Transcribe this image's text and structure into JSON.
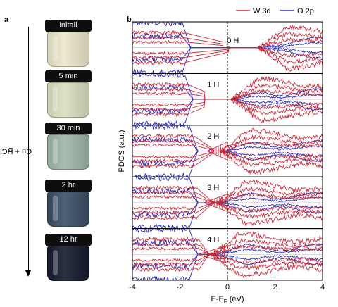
{
  "panels": {
    "a": {
      "label": "a",
      "arrow_label": "Cu + HCl + WO",
      "arrow_label_sub": "3",
      "vials": [
        {
          "time": "initail",
          "liquid_color": "#ebe7c9"
        },
        {
          "time": "5 min",
          "liquid_color": "#d9e0bf"
        },
        {
          "time": "30 min",
          "liquid_color": "#9fb6a8"
        },
        {
          "time": "2 hr",
          "liquid_color": "#3a4e66"
        },
        {
          "time": "12 hr",
          "liquid_color": "#141a2e"
        }
      ]
    },
    "b": {
      "label": "b"
    }
  },
  "chart_data": {
    "type": "line",
    "xlabel": "E-E",
    "xlabel_sub": "F",
    "xlabel_unit": " (eV)",
    "ylabel": "PDOS (a.u.)",
    "xlim": [
      -4,
      4
    ],
    "xticks": [
      -4,
      -2,
      0,
      2,
      4
    ],
    "fermi_level": 0,
    "legend": {
      "position": "top-right",
      "entries": [
        {
          "name": "W 3d",
          "color": "#cc2a3a"
        },
        {
          "name": "O 2p",
          "color": "#2a2ab4"
        }
      ]
    },
    "panels": [
      {
        "label": "0 H",
        "w3d_gap": [
          -1.8,
          0.05
        ],
        "o2p_edge": -1.9,
        "gap_end": 1.3,
        "hatch": false
      },
      {
        "label": "1 H",
        "w3d_gap": [
          -1.7,
          -0.95
        ],
        "o2p_edge": -1.8,
        "gap_end": 0.15,
        "hatch": false
      },
      {
        "label": "2 H",
        "w3d_gap": [
          -1.4,
          -0.6
        ],
        "o2p_edge": -1.6,
        "gap_end": -0.3,
        "hatch": true
      },
      {
        "label": "3 H",
        "w3d_gap": [
          -1.3,
          -0.5
        ],
        "o2p_edge": -1.6,
        "gap_end": -0.45,
        "hatch": true
      },
      {
        "label": "4 H",
        "w3d_gap": [
          -1.2,
          -0.35
        ],
        "o2p_edge": -1.6,
        "gap_end": -0.7,
        "hatch": true
      }
    ]
  }
}
